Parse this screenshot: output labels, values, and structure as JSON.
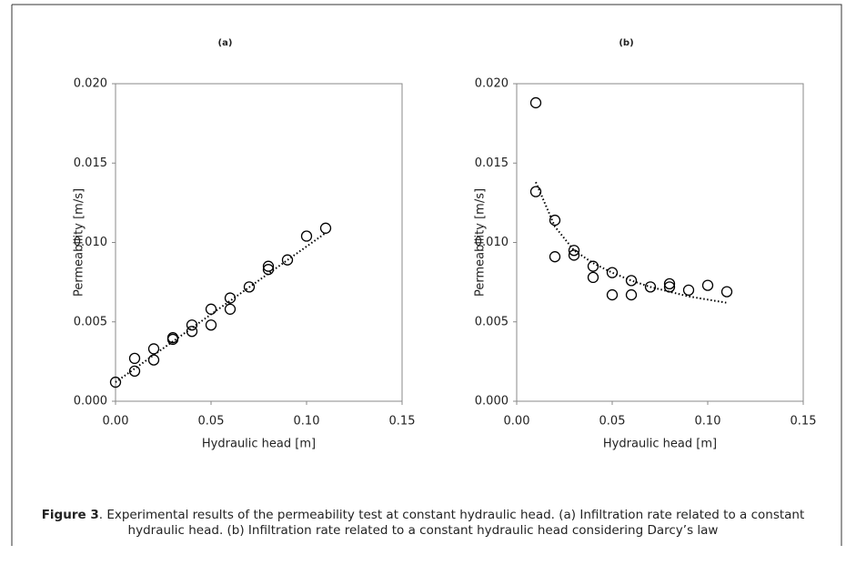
{
  "chart_data": [
    {
      "type": "scatter",
      "title": "(a)",
      "xlabel": "Hydraulic head [m]",
      "ylabel": "Permeability [m/s]",
      "x": [
        0.0,
        0.01,
        0.01,
        0.02,
        0.02,
        0.03,
        0.03,
        0.04,
        0.04,
        0.05,
        0.05,
        0.06,
        0.06,
        0.07,
        0.08,
        0.08,
        0.09,
        0.1,
        0.11
      ],
      "values": [
        0.0012,
        0.0027,
        0.0019,
        0.0033,
        0.0026,
        0.004,
        0.0039,
        0.0048,
        0.0044,
        0.0058,
        0.0048,
        0.0065,
        0.0058,
        0.0072,
        0.0085,
        0.0083,
        0.0089,
        0.0104,
        0.0109
      ],
      "trendline": {
        "x": [
          0.0,
          0.11
        ],
        "values": [
          0.0012,
          0.0106
        ]
      },
      "color": "#000000",
      "xlim": [
        0,
        0.15
      ],
      "xticks": [
        {
          "value": 0,
          "label": "0.00"
        },
        {
          "value": 0.05,
          "label": "0.05"
        },
        {
          "value": 0.1,
          "label": "0.10"
        },
        {
          "value": 0.15,
          "label": "0.15"
        }
      ],
      "ylim": [
        0,
        0.02
      ],
      "yticks": [
        {
          "value": 0,
          "label": "0.000"
        },
        {
          "value": 0.005,
          "label": "0.005"
        },
        {
          "value": 0.01,
          "label": "0.010"
        },
        {
          "value": 0.015,
          "label": "0.015"
        },
        {
          "value": 0.02,
          "label": "0.020"
        }
      ]
    },
    {
      "type": "scatter",
      "title": "(b)",
      "xlabel": "Hydraulic head [m]",
      "ylabel": "Permeability [m/s]",
      "x": [
        0.01,
        0.01,
        0.02,
        0.02,
        0.03,
        0.03,
        0.04,
        0.04,
        0.05,
        0.05,
        0.06,
        0.06,
        0.07,
        0.08,
        0.08,
        0.09,
        0.1,
        0.11
      ],
      "values": [
        0.0188,
        0.0132,
        0.0114,
        0.0091,
        0.0095,
        0.0092,
        0.0085,
        0.0078,
        0.0081,
        0.0067,
        0.0076,
        0.0067,
        0.0072,
        0.0074,
        0.0072,
        0.007,
        0.0073,
        0.0069
      ],
      "trendline": {
        "x": [
          0.01,
          0.02,
          0.03,
          0.04,
          0.05,
          0.06,
          0.07,
          0.08,
          0.09,
          0.1,
          0.11
        ],
        "values": [
          0.0138,
          0.011,
          0.0095,
          0.0087,
          0.0081,
          0.0076,
          0.0072,
          0.0069,
          0.0066,
          0.0064,
          0.0062
        ]
      },
      "color": "#000000",
      "xlim": [
        0,
        0.15
      ],
      "xticks": [
        {
          "value": 0,
          "label": "0.00"
        },
        {
          "value": 0.05,
          "label": "0.05"
        },
        {
          "value": 0.1,
          "label": "0.10"
        },
        {
          "value": 0.15,
          "label": "0.15"
        }
      ],
      "ylim": [
        0,
        0.02
      ],
      "yticks": [
        {
          "value": 0,
          "label": "0.000"
        },
        {
          "value": 0.005,
          "label": "0.005"
        },
        {
          "value": 0.01,
          "label": "0.010"
        },
        {
          "value": 0.015,
          "label": "0.015"
        },
        {
          "value": 0.02,
          "label": "0.020"
        }
      ]
    }
  ],
  "caption": {
    "label": "Figure 3",
    "text": ". Experimental results of the permeability test at constant hydraulic head. (a) Infiltration rate related to a constant hydraulic head. (b) Infiltration rate related to a constant hydraulic head considering Darcy’s law"
  }
}
